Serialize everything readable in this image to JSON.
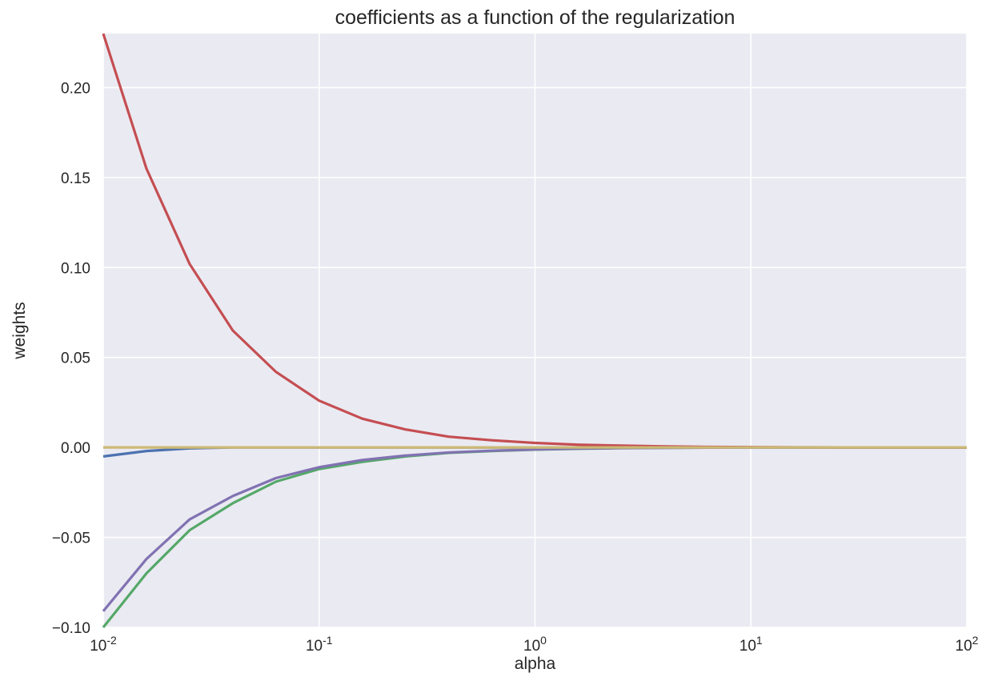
{
  "chart_data": {
    "type": "line",
    "title": "coefficients as a function of the regularization",
    "xlabel": "alpha",
    "ylabel": "weights",
    "xscale": "log",
    "xlim": [
      0.01,
      100
    ],
    "ylim": [
      -0.1,
      0.23
    ],
    "grid": true,
    "legend": "none",
    "x_ticks": [
      {
        "value": 0.01,
        "base": "10",
        "exp": "-2"
      },
      {
        "value": 0.1,
        "base": "10",
        "exp": "-1"
      },
      {
        "value": 1,
        "base": "10",
        "exp": "0"
      },
      {
        "value": 10,
        "base": "10",
        "exp": "1"
      },
      {
        "value": 100,
        "base": "10",
        "exp": "2"
      }
    ],
    "y_ticks": [
      {
        "value": -0.1,
        "label": "−0.10"
      },
      {
        "value": -0.05,
        "label": "−0.05"
      },
      {
        "value": 0.0,
        "label": "0.00"
      },
      {
        "value": 0.05,
        "label": "0.05"
      },
      {
        "value": 0.1,
        "label": "0.10"
      },
      {
        "value": 0.15,
        "label": "0.15"
      },
      {
        "value": 0.2,
        "label": "0.20"
      }
    ],
    "x": [
      0.01,
      0.01585,
      0.02512,
      0.03981,
      0.0631,
      0.1,
      0.1585,
      0.2512,
      0.3981,
      0.631,
      1.0,
      1.585,
      2.512,
      3.981,
      6.31,
      10.0,
      15.85,
      25.12,
      39.81,
      63.1,
      100.0
    ],
    "series": [
      {
        "color": "#4c72b0",
        "values": [
          -0.005,
          -0.002,
          -0.0005,
          0,
          0,
          0,
          0,
          0,
          0,
          0,
          0,
          0,
          0,
          0,
          0,
          0,
          0,
          0,
          0,
          0,
          0
        ]
      },
      {
        "color": "#55a868",
        "values": [
          -0.1,
          -0.07,
          -0.046,
          -0.031,
          -0.019,
          -0.012,
          -0.008,
          -0.005,
          -0.003,
          -0.002,
          -0.0012,
          -0.0007,
          -0.0004,
          -0.0002,
          -0.0001,
          0,
          0,
          0,
          0,
          0,
          0
        ]
      },
      {
        "color": "#c44e52",
        "values": [
          0.23,
          0.155,
          0.102,
          0.065,
          0.042,
          0.026,
          0.016,
          0.01,
          0.006,
          0.004,
          0.0025,
          0.0015,
          0.001,
          0.0006,
          0.0003,
          0.0002,
          0.0001,
          0,
          0,
          0,
          0
        ]
      },
      {
        "color": "#8172b2",
        "values": [
          -0.091,
          -0.062,
          -0.04,
          -0.027,
          -0.017,
          -0.011,
          -0.007,
          -0.0045,
          -0.0028,
          -0.0018,
          -0.0011,
          -0.0006,
          -0.0003,
          -0.0002,
          -0.0001,
          0,
          0,
          0,
          0,
          0,
          0
        ]
      },
      {
        "color": "#ccb974",
        "values": [
          0,
          0,
          0,
          0,
          0,
          0,
          0,
          0,
          0,
          0,
          0,
          0,
          0,
          0,
          0,
          0,
          0,
          0,
          0,
          0,
          0
        ]
      }
    ],
    "colors": {
      "plot_background": "#eaeaf2",
      "grid": "#ffffff",
      "text": "#262626"
    }
  }
}
